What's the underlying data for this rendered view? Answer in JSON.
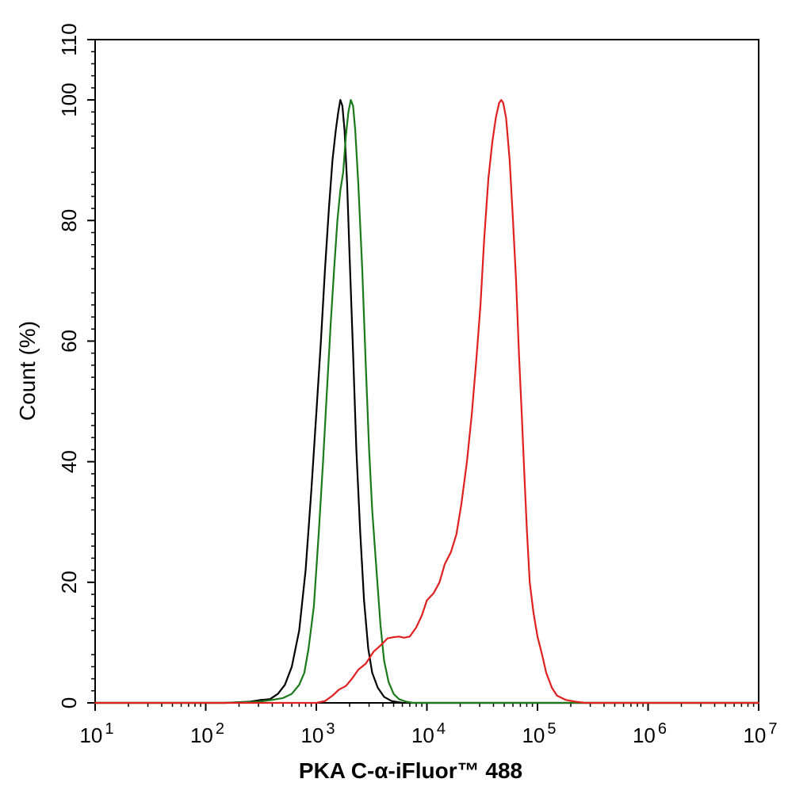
{
  "chart_data": {
    "type": "line",
    "title": "",
    "xlabel": "PKA C-α-iFluor™ 488",
    "ylabel": "Count  (%)",
    "x_scale": "log",
    "xlim": [
      10,
      10000000
    ],
    "ylim": [
      0,
      110
    ],
    "grid": false,
    "x_ticks": [
      {
        "value": 10,
        "base": "10",
        "exp": "1"
      },
      {
        "value": 100,
        "base": "10",
        "exp": "2"
      },
      {
        "value": 1000,
        "base": "10",
        "exp": "3"
      },
      {
        "value": 10000,
        "base": "10",
        "exp": "4"
      },
      {
        "value": 100000,
        "base": "10",
        "exp": "5"
      },
      {
        "value": 1000000,
        "base": "10",
        "exp": "6"
      },
      {
        "value": 10000000,
        "base": "10",
        "exp": "7"
      }
    ],
    "y_ticks": [
      0,
      20,
      40,
      60,
      80,
      100,
      110
    ],
    "series": [
      {
        "color": "#000000",
        "points": [
          [
            10,
            0
          ],
          [
            150,
            0
          ],
          [
            250,
            0.2
          ],
          [
            320,
            0.5
          ],
          [
            380,
            0.6
          ],
          [
            450,
            1.5
          ],
          [
            520,
            3
          ],
          [
            600,
            6
          ],
          [
            700,
            12
          ],
          [
            800,
            22
          ],
          [
            900,
            35
          ],
          [
            1000,
            48
          ],
          [
            1100,
            60
          ],
          [
            1200,
            72
          ],
          [
            1300,
            82
          ],
          [
            1400,
            90
          ],
          [
            1500,
            95
          ],
          [
            1580,
            98
          ],
          [
            1650,
            100
          ],
          [
            1720,
            99
          ],
          [
            1800,
            95
          ],
          [
            1900,
            86
          ],
          [
            2000,
            74
          ],
          [
            2150,
            58
          ],
          [
            2300,
            42
          ],
          [
            2500,
            28
          ],
          [
            2700,
            17
          ],
          [
            2950,
            9
          ],
          [
            3200,
            5
          ],
          [
            3600,
            2.5
          ],
          [
            4100,
            1
          ],
          [
            4800,
            0.3
          ],
          [
            6000,
            0
          ],
          [
            10000000,
            0
          ]
        ]
      },
      {
        "color": "#1a7a1a",
        "points": [
          [
            10,
            0
          ],
          [
            150,
            0
          ],
          [
            300,
            0.2
          ],
          [
            400,
            0.5
          ],
          [
            500,
            0.8
          ],
          [
            600,
            1.5
          ],
          [
            700,
            3
          ],
          [
            780,
            5
          ],
          [
            850,
            9
          ],
          [
            950,
            16
          ],
          [
            1050,
            28
          ],
          [
            1150,
            40
          ],
          [
            1250,
            52
          ],
          [
            1350,
            63
          ],
          [
            1450,
            72
          ],
          [
            1550,
            80
          ],
          [
            1650,
            85
          ],
          [
            1750,
            88
          ],
          [
            1850,
            94
          ],
          [
            1950,
            98
          ],
          [
            2050,
            100
          ],
          [
            2150,
            99
          ],
          [
            2250,
            95
          ],
          [
            2400,
            86
          ],
          [
            2600,
            72
          ],
          [
            2800,
            56
          ],
          [
            3000,
            42
          ],
          [
            3200,
            32
          ],
          [
            3500,
            22
          ],
          [
            3800,
            13
          ],
          [
            4100,
            7
          ],
          [
            4500,
            3.5
          ],
          [
            5000,
            1.5
          ],
          [
            5600,
            0.6
          ],
          [
            6500,
            0.2
          ],
          [
            7500,
            0
          ],
          [
            10000000,
            0
          ]
        ]
      },
      {
        "color": "#e0201e",
        "points": [
          [
            10,
            0
          ],
          [
            1000,
            0
          ],
          [
            1200,
            0.3
          ],
          [
            1400,
            1.2
          ],
          [
            1600,
            2.2
          ],
          [
            1850,
            2.8
          ],
          [
            2100,
            4
          ],
          [
            2400,
            5.5
          ],
          [
            2800,
            6.5
          ],
          [
            3300,
            8.5
          ],
          [
            3800,
            9.5
          ],
          [
            4400,
            10.7
          ],
          [
            5000,
            10.9
          ],
          [
            5600,
            11
          ],
          [
            6200,
            10.8
          ],
          [
            7000,
            11
          ],
          [
            8000,
            12.5
          ],
          [
            9000,
            14.5
          ],
          [
            10000,
            17
          ],
          [
            11500,
            18.2
          ],
          [
            13000,
            20
          ],
          [
            14500,
            23
          ],
          [
            16500,
            25
          ],
          [
            18500,
            28
          ],
          [
            20500,
            33
          ],
          [
            23000,
            40
          ],
          [
            25500,
            48
          ],
          [
            28000,
            57
          ],
          [
            30500,
            66
          ],
          [
            33000,
            77
          ],
          [
            36000,
            87
          ],
          [
            39000,
            93
          ],
          [
            42000,
            97
          ],
          [
            45000,
            99.5
          ],
          [
            47000,
            100
          ],
          [
            49000,
            99.5
          ],
          [
            52000,
            97
          ],
          [
            56000,
            90
          ],
          [
            60000,
            80
          ],
          [
            64000,
            70
          ],
          [
            68000,
            58
          ],
          [
            72000,
            48
          ],
          [
            76000,
            38
          ],
          [
            80000,
            29
          ],
          [
            85000,
            20
          ],
          [
            92000,
            15
          ],
          [
            100000,
            11
          ],
          [
            110000,
            8
          ],
          [
            120000,
            5
          ],
          [
            135000,
            2.5
          ],
          [
            150000,
            1.2
          ],
          [
            180000,
            0.5
          ],
          [
            220000,
            0.2
          ],
          [
            270000,
            0
          ],
          [
            10000000,
            0
          ]
        ]
      }
    ]
  }
}
